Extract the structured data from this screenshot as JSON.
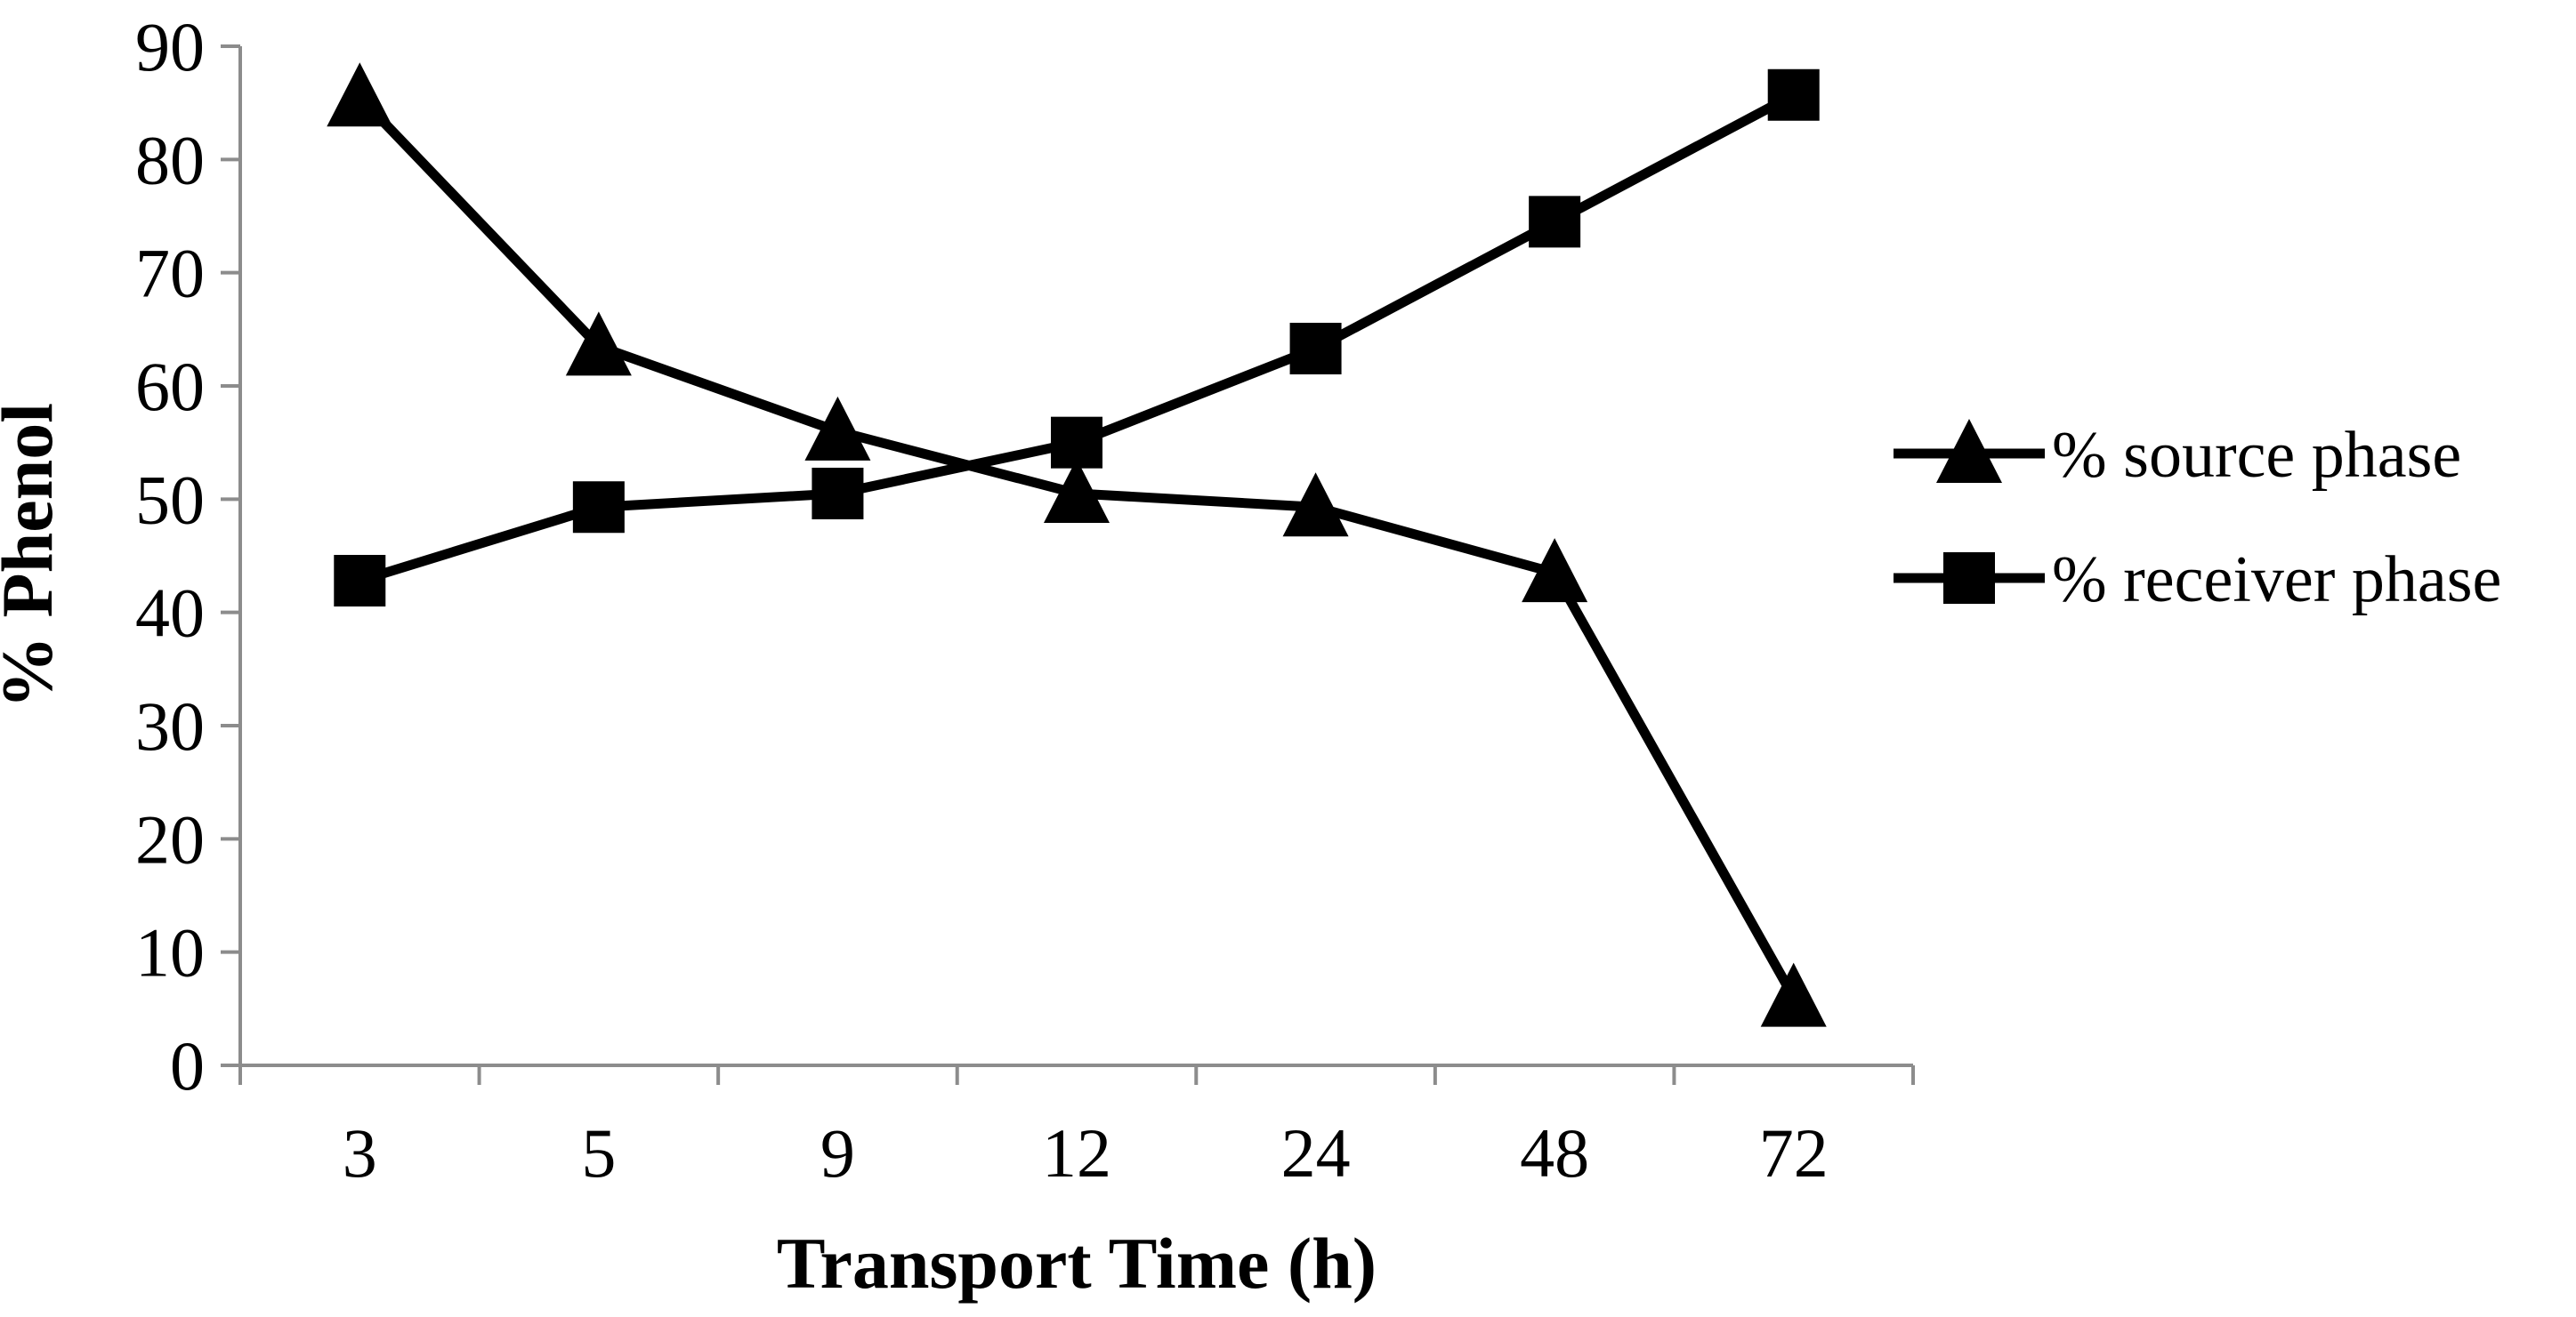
{
  "chart_data": {
    "type": "line",
    "title": "",
    "xlabel": "Transport Time (h)",
    "ylabel": "% Phenol",
    "categories": [
      "3",
      "5",
      "9",
      "12",
      "24",
      "48",
      "72"
    ],
    "ylim": [
      0,
      90
    ],
    "yticks": [
      "0",
      "10",
      "20",
      "30",
      "40",
      "50",
      "60",
      "70",
      "80",
      "90"
    ],
    "grid": false,
    "legend_position": "right",
    "series": [
      {
        "name": "% source phase",
        "marker": "triangle",
        "color": "#000000",
        "values": [
          85.5,
          63.5,
          56,
          50.5,
          49.3,
          43.5,
          6
        ]
      },
      {
        "name": "% receiver phase",
        "marker": "square",
        "color": "#000000",
        "values": [
          42.8,
          49.3,
          50.5,
          55,
          63.3,
          74.5,
          85.7
        ]
      }
    ]
  }
}
